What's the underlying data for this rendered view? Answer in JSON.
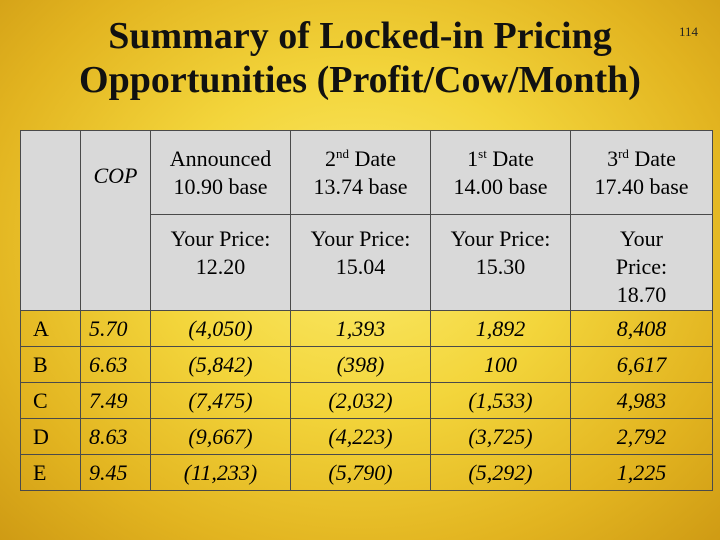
{
  "title_line1": "Summary of Locked-in Pricing",
  "title_line2": "Opportunities (Profit/Cow/Month)",
  "page_number": "114",
  "cop_label": "COP",
  "columns": [
    {
      "name": "Announced",
      "sup": "",
      "base": "10.90 base",
      "price_label": "Your Price:",
      "price": "12.20"
    },
    {
      "name": "Date",
      "ordinal": "2",
      "sup": "nd",
      "base": "13.74 base",
      "price_label": "Your Price:",
      "price": "15.04"
    },
    {
      "name": "Date",
      "ordinal": "1",
      "sup": "st",
      "base": "14.00 base",
      "price_label": "Your Price:",
      "price": "15.30"
    },
    {
      "name": "Date",
      "ordinal": "3",
      "sup": "rd",
      "base": "17.40 base",
      "price_label_1": "Your",
      "price_label_2": "Price:",
      "price": "18.70"
    }
  ],
  "rows": [
    {
      "label": "A",
      "cop": "5.70",
      "values": [
        "(4,050)",
        "1,393",
        "1,892",
        "8,408"
      ]
    },
    {
      "label": "B",
      "cop": "6.63",
      "values": [
        "(5,842)",
        "(398)",
        "100",
        "6,617"
      ]
    },
    {
      "label": "C",
      "cop": "7.49",
      "values": [
        "(7,475)",
        "(2,032)",
        "(1,533)",
        "4,983"
      ]
    },
    {
      "label": "D",
      "cop": "8.63",
      "values": [
        "(9,667)",
        "(4,223)",
        "(3,725)",
        "2,792"
      ]
    },
    {
      "label": "E",
      "cop": "9.45",
      "values": [
        "(11,233)",
        "(5,790)",
        "(5,292)",
        "1,225"
      ]
    }
  ]
}
